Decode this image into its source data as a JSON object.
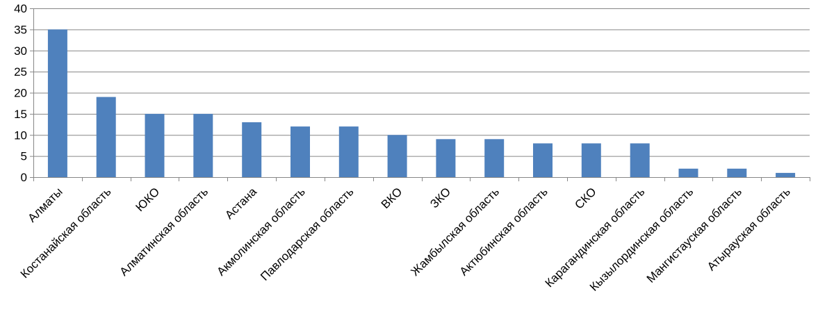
{
  "chart_data": {
    "type": "bar",
    "categories": [
      "Алматы",
      "Костанайская область",
      "ЮКО",
      "Алматинская область",
      "Астана",
      "Акмолинская область",
      "Павлодарская область",
      "ВКО",
      "ЗКО",
      "Жамбылская область",
      "Актюбинская область",
      "СКО",
      "Карагандинская область",
      "Кызылординская область",
      "Мангистауская область",
      "Атырауская область"
    ],
    "values": [
      35,
      19,
      15,
      15,
      13,
      12,
      12,
      10,
      9,
      9,
      8,
      8,
      8,
      2,
      2,
      1
    ],
    "ylim": [
      0,
      40
    ],
    "yticks": [
      "0",
      "5",
      "10",
      "15",
      "20",
      "25",
      "30",
      "35",
      "40"
    ],
    "grid": true,
    "legend": "none",
    "colors": {
      "bar": "#4f81bd",
      "grid": "#868686",
      "axis": "#868686"
    }
  }
}
